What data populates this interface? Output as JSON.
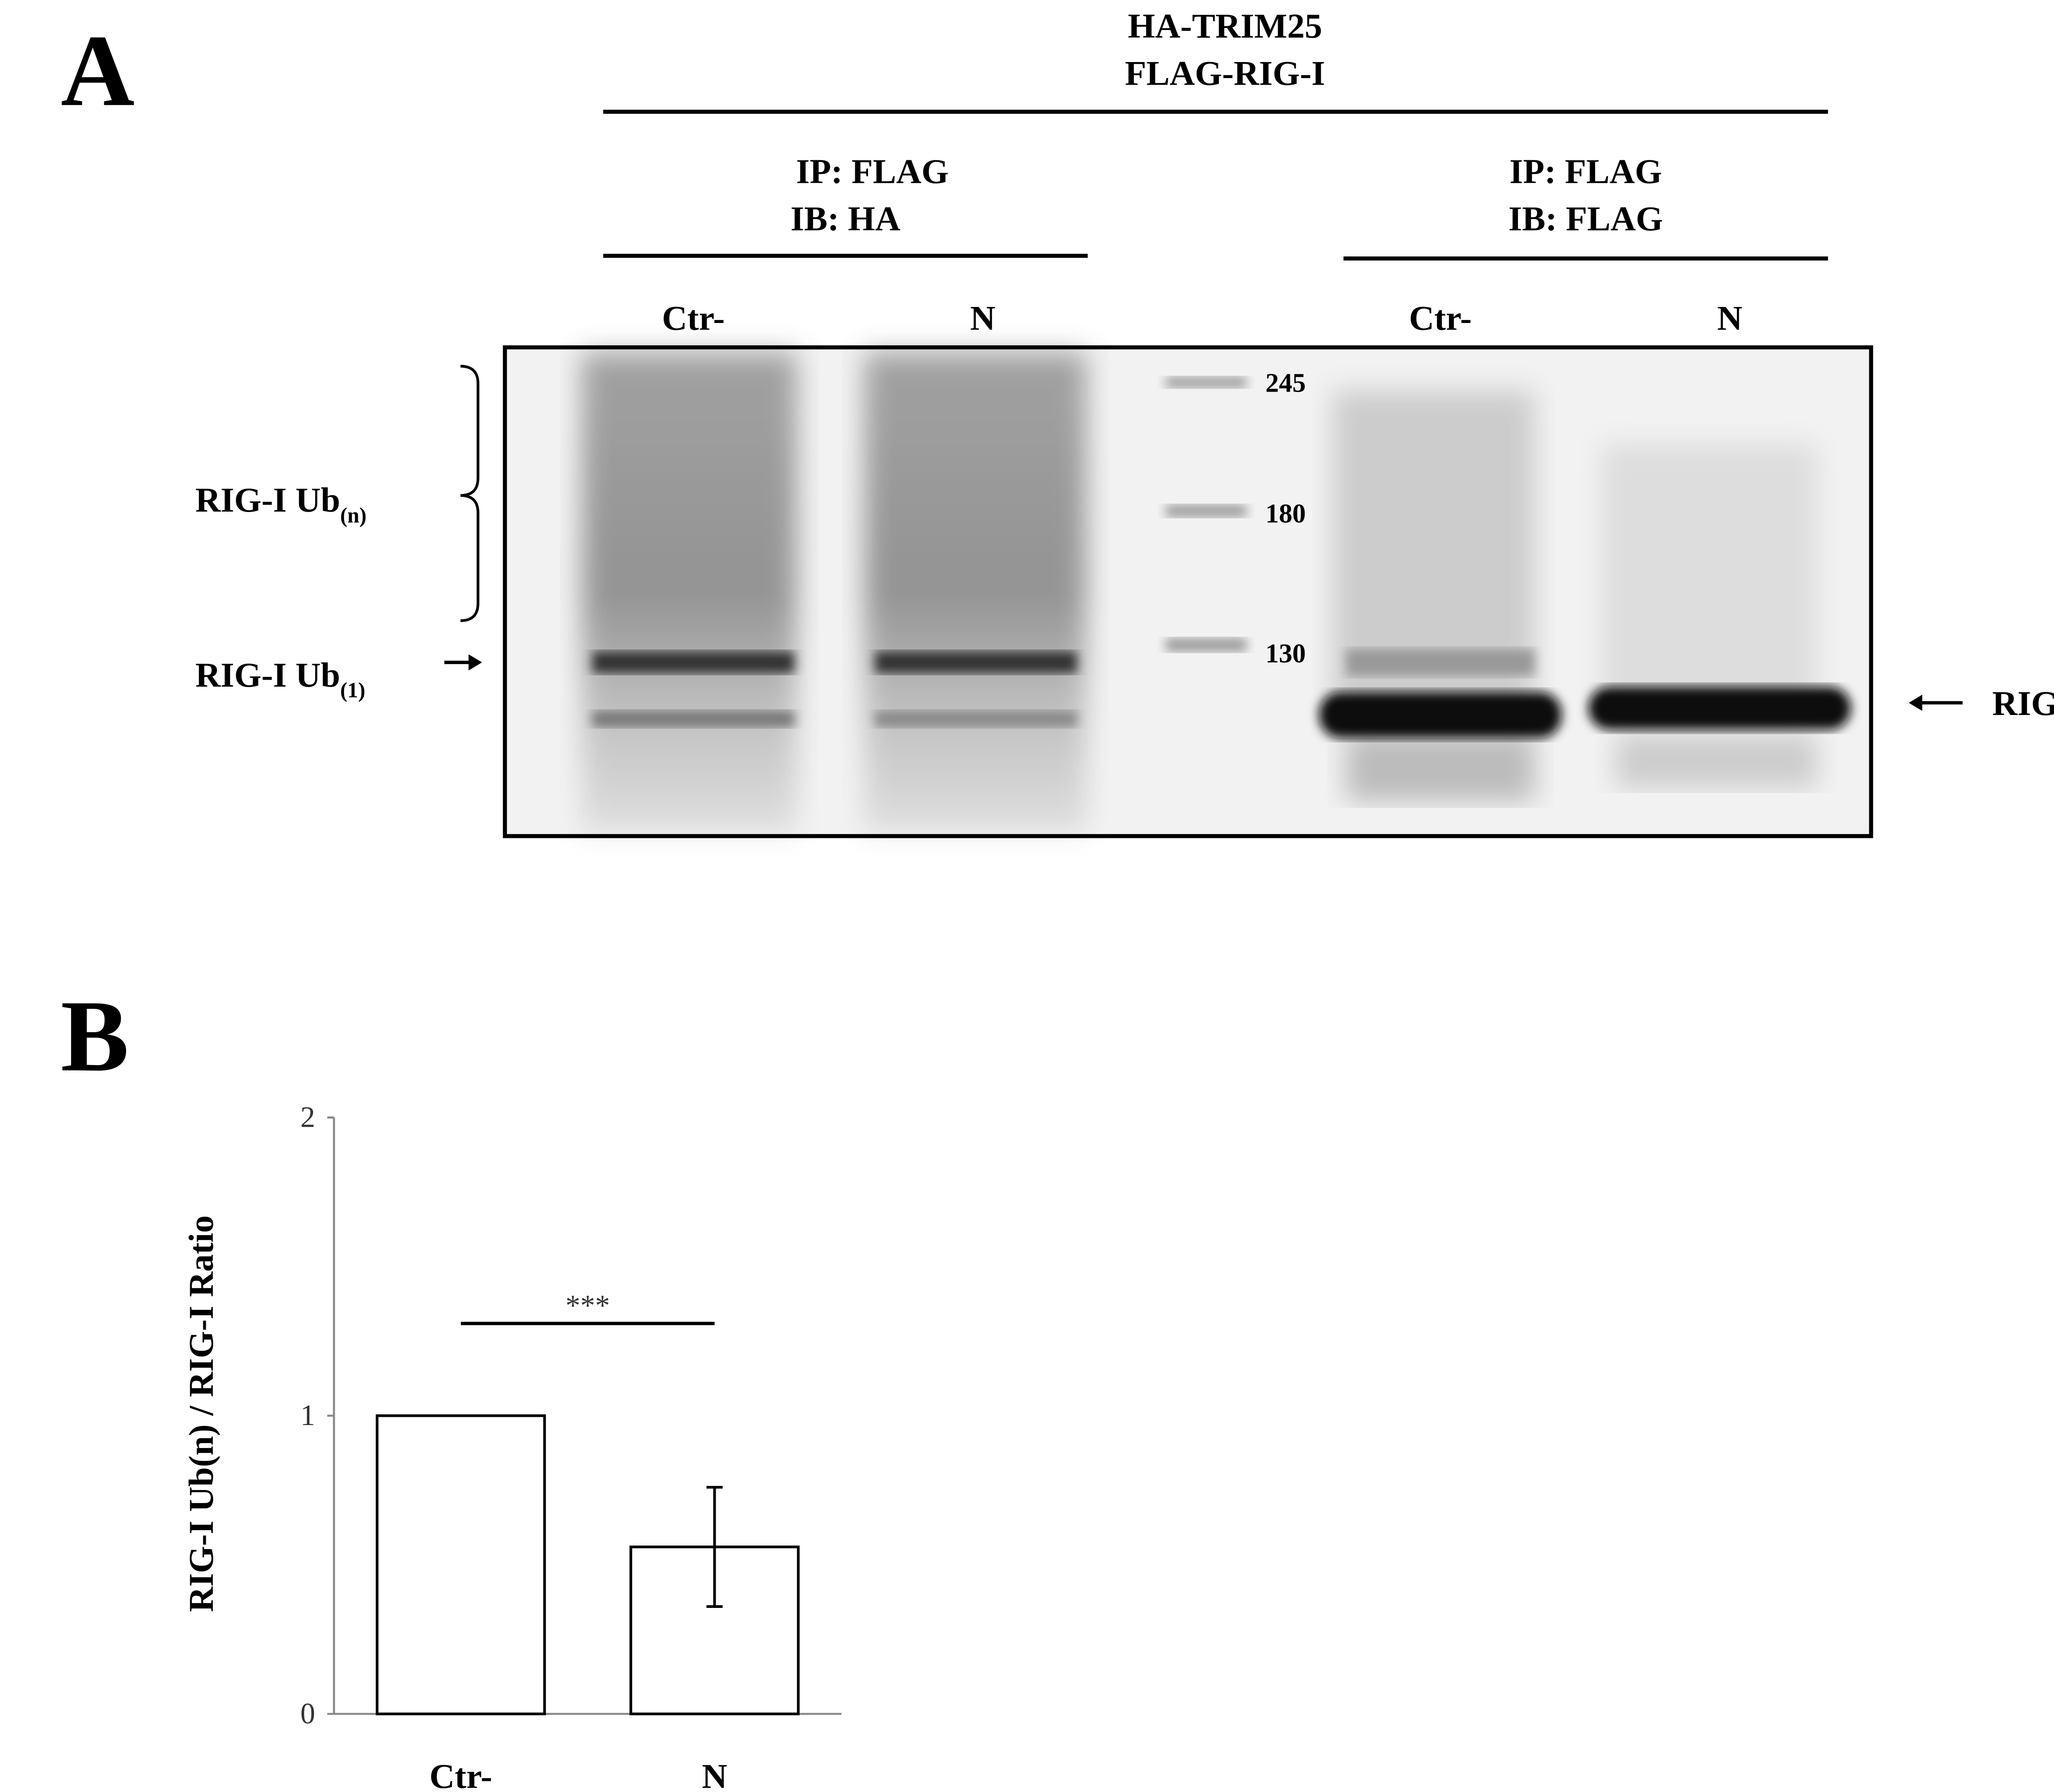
{
  "panel_a": {
    "label": "A",
    "treatment": [
      "HA-TRIM25",
      "FLAG-RIG-I"
    ],
    "groups": [
      {
        "ip": "IP: FLAG",
        "ib": "IB: HA",
        "lanes": [
          "Ctr-",
          "N"
        ]
      },
      {
        "ip": "IP: FLAG",
        "ib": "IB: FLAG",
        "lanes": [
          "Ctr-",
          "N"
        ]
      }
    ],
    "markers": [
      "245",
      "180",
      "130"
    ],
    "ub_n": {
      "text": "RIG-I Ub",
      "sub": "(n)"
    },
    "ub_1": {
      "text": "RIG-I Ub",
      "sub": "(1)"
    },
    "rig_i": "RIG-I"
  },
  "chart_data": {
    "type": "bar",
    "panel_label": "B",
    "y_label": "RIG-I Ub(n) / RIG-I Ratio",
    "categories": [
      "Ctr-",
      "N"
    ],
    "values": [
      1,
      0.56
    ],
    "errors": [
      null,
      0.2
    ],
    "color": "#ffffff",
    "ylim": [
      0,
      2
    ],
    "yticks": [
      0,
      1,
      2
    ],
    "annotation": "***"
  }
}
